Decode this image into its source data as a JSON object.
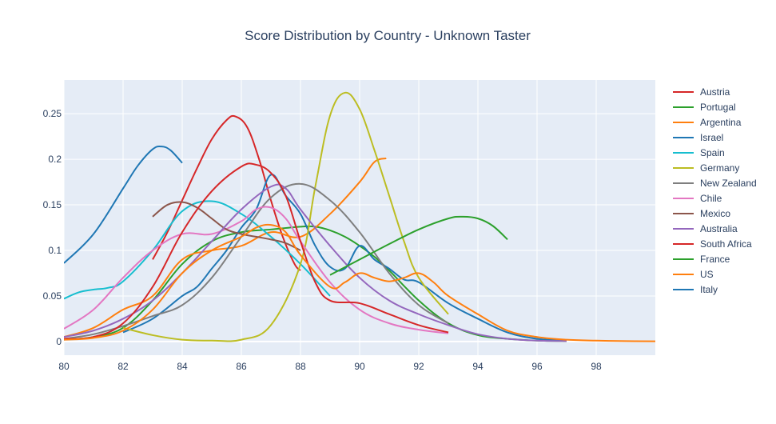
{
  "chart_data": {
    "type": "line",
    "title": "Score Distribution by Country - Unknown Taster",
    "xlabel": "",
    "ylabel": "",
    "xlim": [
      80,
      100
    ],
    "ylim": [
      -0.015,
      0.287
    ],
    "x_ticks": [
      80,
      82,
      84,
      86,
      88,
      90,
      92,
      94,
      96,
      98
    ],
    "x_tick_labels": [
      "80",
      "82",
      "84",
      "86",
      "88",
      "90",
      "92",
      "94",
      "96",
      "98"
    ],
    "y_ticks": [
      0,
      0.05,
      0.1,
      0.15,
      0.2,
      0.25
    ],
    "y_tick_labels": [
      "0",
      "0.05",
      "0.1",
      "0.15",
      "0.2",
      "0.25"
    ],
    "grid": true,
    "legend_position": "right",
    "series": [
      {
        "name": "Austria",
        "color": "#d62728",
        "x": [
          83,
          83.5,
          84,
          84.5,
          85,
          85.5,
          85.8,
          86.2,
          86.6,
          87,
          87.4,
          87.8,
          88
        ],
        "y": [
          0.09,
          0.12,
          0.155,
          0.19,
          0.222,
          0.243,
          0.247,
          0.235,
          0.2,
          0.155,
          0.115,
          0.085,
          0.078
        ]
      },
      {
        "name": "Portugal",
        "color": "#2ca02c",
        "x": [
          80,
          81,
          82,
          83,
          84,
          85,
          86,
          87,
          88,
          88.5,
          89,
          89.5,
          90,
          90.5,
          91,
          92,
          93,
          94,
          95,
          96,
          97
        ],
        "y": [
          0.002,
          0.005,
          0.015,
          0.045,
          0.085,
          0.11,
          0.12,
          0.123,
          0.126,
          0.126,
          0.122,
          0.115,
          0.105,
          0.093,
          0.078,
          0.045,
          0.02,
          0.007,
          0.003,
          0.001,
          0.0005
        ]
      },
      {
        "name": "Argentina",
        "color": "#ff7f0e",
        "x": [
          80,
          81,
          82,
          83,
          84,
          85,
          86,
          87,
          88,
          89,
          90,
          90.5,
          90.9
        ],
        "y": [
          0.005,
          0.015,
          0.035,
          0.05,
          0.09,
          0.1,
          0.105,
          0.12,
          0.115,
          0.14,
          0.175,
          0.197,
          0.201
        ]
      },
      {
        "name": "Israel",
        "color": "#1f77b4",
        "x": [
          82,
          83,
          84,
          84.5,
          85,
          85.5,
          86,
          86.5,
          87,
          87.5,
          88,
          88.5,
          89,
          89.5,
          90,
          90.5,
          91,
          91.5,
          92,
          93,
          94,
          95,
          96,
          97
        ],
        "y": [
          0.01,
          0.025,
          0.05,
          0.06,
          0.08,
          0.1,
          0.125,
          0.145,
          0.183,
          0.16,
          0.14,
          0.105,
          0.082,
          0.08,
          0.105,
          0.09,
          0.08,
          0.068,
          0.065,
          0.042,
          0.025,
          0.01,
          0.003,
          0.001
        ]
      },
      {
        "name": "Spain",
        "color": "#17becf",
        "x": [
          80,
          80.5,
          81,
          81.5,
          82,
          83,
          84,
          85,
          86,
          87,
          88,
          89
        ],
        "y": [
          0.047,
          0.054,
          0.057,
          0.059,
          0.066,
          0.1,
          0.143,
          0.154,
          0.14,
          0.115,
          0.085,
          0.05
        ]
      },
      {
        "name": "Germany",
        "color": "#bcbd22",
        "x": [
          82,
          83,
          84,
          85,
          86,
          87,
          88,
          88.5,
          89,
          89.5,
          90,
          90.5,
          91,
          91.5,
          92,
          93
        ],
        "y": [
          0.015,
          0.007,
          0.002,
          0.001,
          0.002,
          0.018,
          0.085,
          0.17,
          0.248,
          0.273,
          0.255,
          0.21,
          0.16,
          0.11,
          0.07,
          0.03
        ]
      },
      {
        "name": "New Zealand",
        "color": "#7f7f7f",
        "x": [
          80,
          81,
          82,
          83,
          84,
          85,
          86,
          87,
          88,
          89,
          90,
          91,
          92,
          93
        ],
        "y": [
          0.003,
          0.008,
          0.017,
          0.028,
          0.04,
          0.07,
          0.115,
          0.158,
          0.173,
          0.155,
          0.12,
          0.075,
          0.04,
          0.02
        ]
      },
      {
        "name": "Chile",
        "color": "#e377c2",
        "x": [
          80,
          81,
          82,
          83,
          84,
          85,
          86,
          86.5,
          87,
          87.5,
          88,
          89,
          90,
          91,
          92,
          93
        ],
        "y": [
          0.014,
          0.035,
          0.07,
          0.1,
          0.118,
          0.118,
          0.132,
          0.145,
          0.147,
          0.135,
          0.11,
          0.065,
          0.035,
          0.02,
          0.013,
          0.009
        ]
      },
      {
        "name": "Mexico",
        "color": "#8c564b",
        "x": [
          83,
          83.5,
          84,
          84.5,
          85,
          85.5,
          86,
          86.5,
          87,
          87.5,
          88
        ],
        "y": [
          0.137,
          0.15,
          0.153,
          0.147,
          0.135,
          0.123,
          0.118,
          0.115,
          0.112,
          0.108,
          0.1
        ]
      },
      {
        "name": "Australia",
        "color": "#9467bd",
        "x": [
          80,
          81,
          82,
          83,
          84,
          85,
          86,
          87,
          87.5,
          88,
          89,
          90,
          91,
          92,
          93,
          94,
          95,
          96,
          97
        ],
        "y": [
          0.005,
          0.012,
          0.025,
          0.045,
          0.075,
          0.11,
          0.145,
          0.17,
          0.168,
          0.145,
          0.105,
          0.07,
          0.045,
          0.03,
          0.018,
          0.008,
          0.003,
          0.001,
          0.0005
        ]
      },
      {
        "name": "South Africa",
        "color": "#d62728",
        "x": [
          80,
          81,
          82,
          83,
          84,
          85,
          86,
          86.5,
          87,
          87.5,
          88,
          88.5,
          89,
          90,
          91,
          92,
          93
        ],
        "y": [
          0.003,
          0.005,
          0.02,
          0.06,
          0.12,
          0.165,
          0.192,
          0.194,
          0.185,
          0.16,
          0.11,
          0.065,
          0.045,
          0.042,
          0.03,
          0.018,
          0.01
        ]
      },
      {
        "name": "France",
        "color": "#2ca02c",
        "x": [
          89,
          90,
          91,
          92,
          93,
          93.5,
          94,
          94.5,
          95
        ],
        "y": [
          0.073,
          0.09,
          0.107,
          0.123,
          0.135,
          0.137,
          0.135,
          0.127,
          0.112
        ]
      },
      {
        "name": "US",
        "color": "#ff7f0e",
        "x": [
          80,
          81,
          82,
          83,
          84,
          85,
          86,
          86.5,
          87,
          87.5,
          88,
          89,
          89.5,
          90,
          90.5,
          91,
          91.5,
          92,
          92.5,
          93,
          94,
          95,
          96,
          97,
          98,
          99,
          100
        ],
        "y": [
          0.002,
          0.004,
          0.012,
          0.035,
          0.075,
          0.1,
          0.115,
          0.125,
          0.128,
          0.12,
          0.095,
          0.06,
          0.065,
          0.075,
          0.07,
          0.066,
          0.07,
          0.075,
          0.065,
          0.05,
          0.03,
          0.012,
          0.005,
          0.002,
          0.001,
          0.0005,
          0.0003
        ]
      },
      {
        "name": "Italy",
        "color": "#1f77b4",
        "x": [
          80,
          81,
          82,
          82.5,
          83,
          83.3,
          83.6,
          84
        ],
        "y": [
          0.086,
          0.118,
          0.168,
          0.193,
          0.211,
          0.214,
          0.21,
          0.196
        ]
      }
    ]
  }
}
